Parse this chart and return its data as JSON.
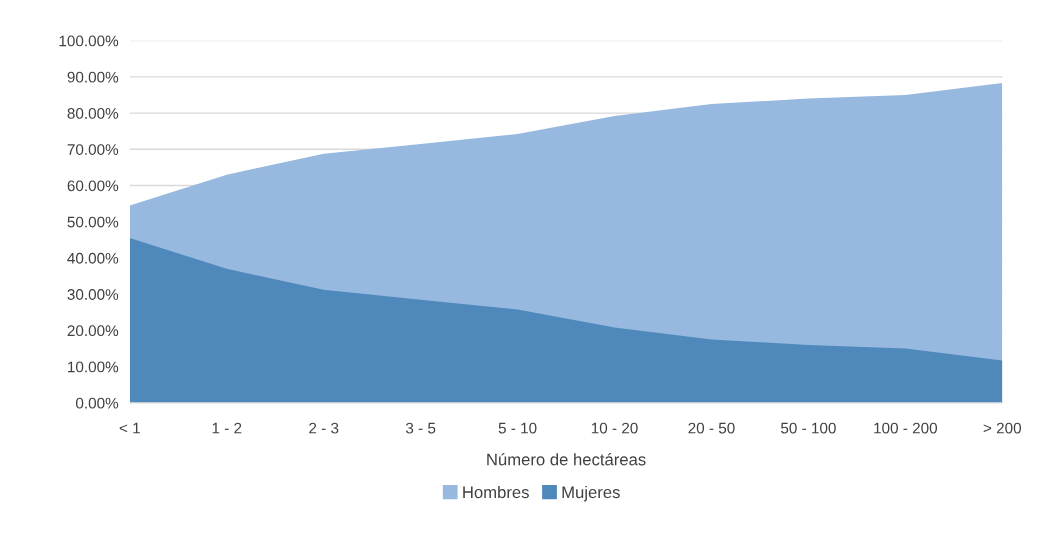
{
  "chart_data": {
    "type": "area",
    "xlabel": "Número de hectáreas",
    "categories": [
      "< 1",
      "1 - 2",
      "2 - 3",
      "3 - 5",
      "5 - 10",
      "10 - 20",
      "20 - 50",
      "50 - 100",
      "100 - 200",
      "> 200"
    ],
    "series": [
      {
        "name": "Hombres",
        "color": "#97b8df",
        "values": [
          54.5,
          63,
          68.8,
          71.5,
          74.2,
          79.2,
          82.5,
          84,
          85,
          88.3
        ]
      },
      {
        "name": "Mujeres",
        "color": "#4f89bc",
        "values": [
          45.5,
          37,
          31.2,
          28.5,
          25.8,
          20.8,
          17.5,
          16,
          15,
          11.7
        ]
      }
    ],
    "ylim": [
      0,
      100
    ],
    "yticks": [
      {
        "value": 0,
        "label": "0.00%"
      },
      {
        "value": 10,
        "label": "10.00%"
      },
      {
        "value": 20,
        "label": "20.00%"
      },
      {
        "value": 30,
        "label": "30.00%"
      },
      {
        "value": 40,
        "label": "40.00%"
      },
      {
        "value": 50,
        "label": "50.00%"
      },
      {
        "value": 60,
        "label": "60.00%"
      },
      {
        "value": 70,
        "label": "70.00%"
      },
      {
        "value": 80,
        "label": "80.00%"
      },
      {
        "value": 90,
        "label": "90.00%"
      },
      {
        "value": 100,
        "label": "100.00%"
      }
    ],
    "grid": "y",
    "legend": "bottom"
  }
}
